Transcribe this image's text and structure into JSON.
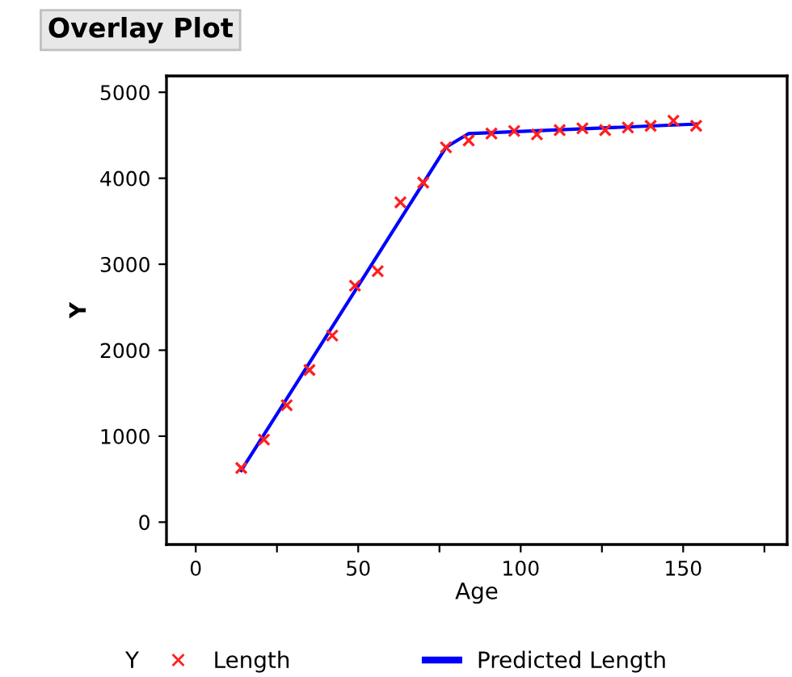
{
  "chart_data": {
    "type": "scatter",
    "title": "Overlay Plot",
    "xlabel": "Age",
    "ylabel": "Y",
    "legend_title": "Y",
    "x": [
      14,
      21,
      28,
      35,
      42,
      49,
      56,
      63,
      70,
      77,
      84,
      91,
      98,
      105,
      112,
      119,
      126,
      133,
      140,
      147,
      154
    ],
    "series": [
      {
        "name": "Length",
        "color": "#ff2020",
        "marker": "cross",
        "values": [
          630,
          960,
          1360,
          1770,
          2170,
          2750,
          2920,
          3720,
          3950,
          4360,
          4440,
          4520,
          4550,
          4510,
          4560,
          4580,
          4560,
          4590,
          4610,
          4670,
          4610
        ]
      },
      {
        "name": "Predicted Length",
        "type": "line",
        "color": "#0000ff",
        "x": [
          14,
          77,
          84,
          154
        ],
        "values": [
          600,
          4360,
          4520,
          4630
        ]
      }
    ],
    "xlim": [
      -9,
      182
    ],
    "ylim": [
      -260,
      5190
    ],
    "xticks": [
      0,
      {
        "value": 25,
        "label": null
      },
      50,
      {
        "value": 75,
        "label": null
      },
      100,
      {
        "value": 125,
        "label": null
      },
      150,
      {
        "value": 175,
        "label": null
      }
    ],
    "yticks": [
      0,
      1000,
      2000,
      3000,
      4000,
      5000
    ],
    "grid": false,
    "legend": "bottom"
  }
}
